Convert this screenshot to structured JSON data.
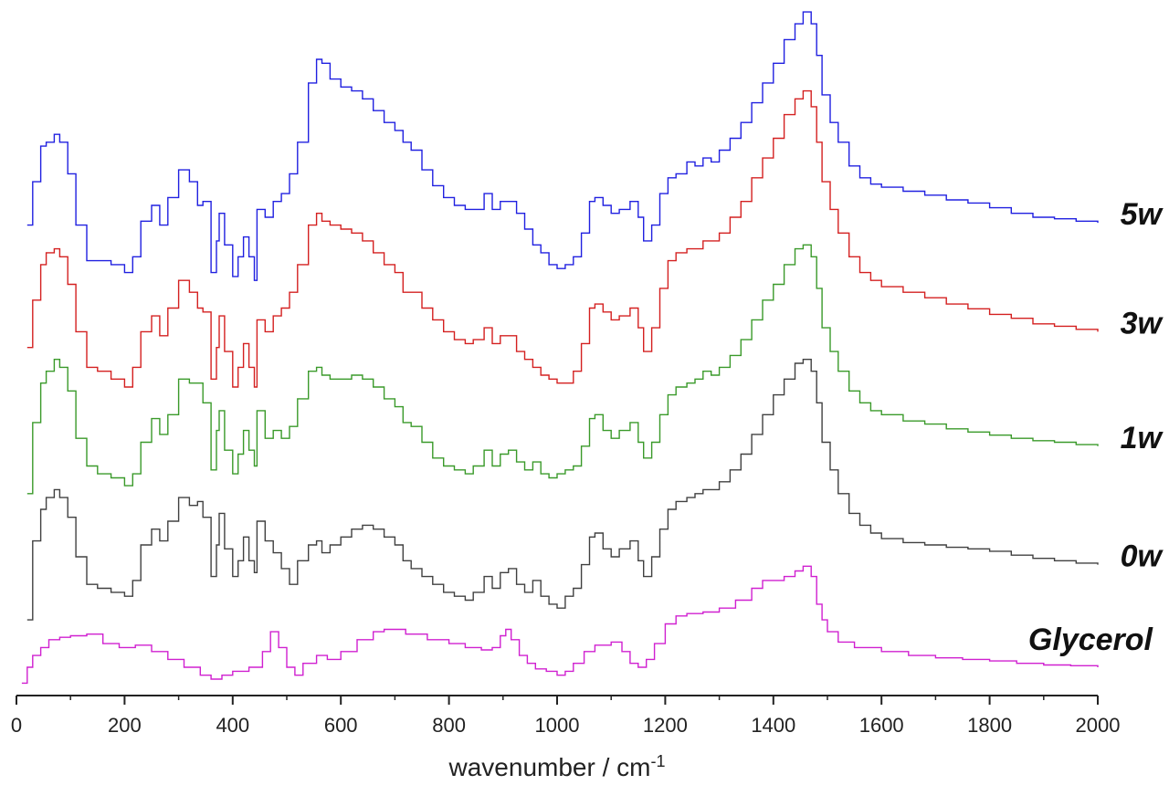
{
  "chart_data": {
    "type": "line",
    "title": "",
    "xlabel": "wavenumber / cm",
    "xlabel_sup": "-1",
    "ylabel": "",
    "xlim": [
      0,
      2000
    ],
    "xticks": [
      0,
      200,
      400,
      600,
      800,
      1000,
      1200,
      1400,
      1600,
      1800,
      2000
    ],
    "grid": false,
    "legend": "inline-right",
    "series": [
      {
        "name": "5w",
        "color": "#2020e0",
        "x": [
          20,
          30,
          45,
          55,
          70,
          80,
          95,
          110,
          130,
          150,
          175,
          200,
          215,
          230,
          250,
          265,
          280,
          300,
          320,
          335,
          345,
          360,
          370,
          375,
          385,
          400,
          410,
          420,
          430,
          440,
          445,
          460,
          475,
          490,
          505,
          520,
          540,
          555,
          565,
          580,
          600,
          620,
          640,
          660,
          680,
          700,
          715,
          730,
          750,
          770,
          790,
          810,
          830,
          845,
          865,
          880,
          895,
          910,
          925,
          940,
          955,
          970,
          985,
          1000,
          1015,
          1030,
          1045,
          1060,
          1070,
          1085,
          1100,
          1115,
          1135,
          1150,
          1160,
          1175,
          1190,
          1205,
          1220,
          1240,
          1255,
          1270,
          1285,
          1300,
          1320,
          1340,
          1360,
          1380,
          1400,
          1420,
          1440,
          1455,
          1470,
          1480,
          1490,
          1505,
          1520,
          1540,
          1560,
          1580,
          1600,
          1640,
          1680,
          1720,
          1760,
          1800,
          1840,
          1880,
          1920,
          1960,
          2000
        ],
        "y": [
          5.9,
          6.45,
          6.9,
          6.95,
          7.05,
          6.95,
          6.55,
          5.9,
          5.45,
          5.45,
          5.4,
          5.3,
          5.5,
          5.95,
          6.15,
          5.9,
          6.25,
          6.6,
          6.45,
          6.15,
          6.2,
          5.3,
          5.7,
          6.05,
          5.65,
          5.25,
          5.5,
          5.75,
          5.5,
          5.2,
          6.1,
          6.0,
          6.2,
          6.3,
          6.55,
          6.95,
          7.7,
          8.0,
          7.95,
          7.75,
          7.65,
          7.6,
          7.5,
          7.35,
          7.2,
          7.1,
          6.95,
          6.85,
          6.6,
          6.4,
          6.25,
          6.15,
          6.1,
          6.1,
          6.3,
          6.1,
          6.2,
          6.2,
          6.05,
          5.85,
          5.65,
          5.55,
          5.4,
          5.35,
          5.4,
          5.5,
          5.8,
          6.2,
          6.25,
          6.15,
          6.05,
          6.1,
          6.2,
          6.0,
          5.7,
          5.9,
          6.3,
          6.5,
          6.55,
          6.7,
          6.65,
          6.75,
          6.7,
          6.85,
          7.0,
          7.2,
          7.45,
          7.7,
          7.95,
          8.25,
          8.45,
          8.6,
          8.45,
          8.05,
          7.55,
          7.2,
          6.95,
          6.65,
          6.5,
          6.42,
          6.38,
          6.33,
          6.28,
          6.22,
          6.18,
          6.12,
          6.05,
          6.0,
          5.98,
          5.95,
          5.93
        ]
      },
      {
        "name": "3w",
        "color": "#d42020",
        "x": [
          20,
          30,
          45,
          55,
          70,
          80,
          95,
          110,
          130,
          150,
          175,
          200,
          215,
          230,
          250,
          265,
          280,
          300,
          320,
          335,
          345,
          360,
          370,
          375,
          385,
          400,
          410,
          420,
          430,
          440,
          445,
          460,
          475,
          490,
          505,
          520,
          540,
          555,
          565,
          580,
          600,
          620,
          640,
          660,
          680,
          700,
          715,
          730,
          750,
          770,
          790,
          810,
          830,
          845,
          865,
          880,
          895,
          910,
          925,
          940,
          955,
          970,
          985,
          1000,
          1015,
          1030,
          1045,
          1060,
          1070,
          1085,
          1100,
          1115,
          1135,
          1150,
          1160,
          1175,
          1190,
          1205,
          1220,
          1240,
          1255,
          1270,
          1285,
          1300,
          1320,
          1340,
          1360,
          1380,
          1400,
          1420,
          1440,
          1455,
          1470,
          1480,
          1490,
          1505,
          1520,
          1540,
          1560,
          1580,
          1600,
          1640,
          1680,
          1720,
          1760,
          1800,
          1840,
          1880,
          1920,
          1960,
          2000
        ],
        "y": [
          4.35,
          4.95,
          5.4,
          5.55,
          5.6,
          5.5,
          5.15,
          4.55,
          4.1,
          4.05,
          3.95,
          3.85,
          4.1,
          4.55,
          4.75,
          4.5,
          4.85,
          5.2,
          5.05,
          4.85,
          4.8,
          3.95,
          4.35,
          4.75,
          4.3,
          3.85,
          4.1,
          4.4,
          4.1,
          3.85,
          4.7,
          4.55,
          4.75,
          4.85,
          5.05,
          5.4,
          5.9,
          6.05,
          5.95,
          5.9,
          5.85,
          5.8,
          5.7,
          5.55,
          5.4,
          5.3,
          5.05,
          5.05,
          4.85,
          4.7,
          4.55,
          4.45,
          4.4,
          4.45,
          4.6,
          4.4,
          4.5,
          4.5,
          4.3,
          4.2,
          4.1,
          4.0,
          3.95,
          3.9,
          3.9,
          4.05,
          4.4,
          4.85,
          4.9,
          4.8,
          4.7,
          4.75,
          4.85,
          4.6,
          4.3,
          4.6,
          5.1,
          5.45,
          5.55,
          5.6,
          5.6,
          5.7,
          5.7,
          5.8,
          6.0,
          6.2,
          6.5,
          6.75,
          7.0,
          7.3,
          7.5,
          7.6,
          7.4,
          6.95,
          6.45,
          6.1,
          5.8,
          5.5,
          5.3,
          5.2,
          5.12,
          5.05,
          4.98,
          4.9,
          4.84,
          4.77,
          4.72,
          4.65,
          4.62,
          4.58,
          4.55
        ]
      },
      {
        "name": "1w",
        "color": "#3a9a2a",
        "x": [
          20,
          30,
          45,
          55,
          70,
          80,
          95,
          110,
          130,
          150,
          175,
          200,
          215,
          230,
          250,
          265,
          280,
          300,
          320,
          335,
          345,
          360,
          370,
          375,
          385,
          400,
          410,
          420,
          430,
          440,
          445,
          460,
          475,
          490,
          505,
          520,
          540,
          555,
          565,
          580,
          600,
          620,
          640,
          660,
          680,
          700,
          715,
          730,
          750,
          770,
          790,
          810,
          830,
          845,
          865,
          880,
          895,
          910,
          925,
          940,
          955,
          970,
          985,
          1000,
          1015,
          1030,
          1045,
          1060,
          1070,
          1085,
          1100,
          1115,
          1135,
          1150,
          1160,
          1175,
          1190,
          1205,
          1220,
          1240,
          1255,
          1270,
          1285,
          1300,
          1320,
          1340,
          1360,
          1380,
          1400,
          1420,
          1440,
          1455,
          1470,
          1480,
          1490,
          1505,
          1520,
          1540,
          1560,
          1580,
          1600,
          1640,
          1680,
          1720,
          1760,
          1800,
          1840,
          1880,
          1920,
          1960,
          2000
        ],
        "y": [
          2.5,
          3.4,
          3.9,
          4.05,
          4.2,
          4.1,
          3.8,
          3.2,
          2.85,
          2.75,
          2.7,
          2.6,
          2.75,
          3.15,
          3.45,
          3.25,
          3.5,
          3.95,
          3.9,
          3.9,
          3.65,
          2.8,
          3.3,
          3.55,
          3.05,
          2.75,
          3.0,
          3.3,
          3.05,
          2.85,
          3.55,
          3.2,
          3.3,
          3.2,
          3.35,
          3.7,
          4.05,
          4.1,
          4.0,
          3.95,
          3.95,
          4.0,
          3.95,
          3.85,
          3.7,
          3.6,
          3.4,
          3.35,
          3.15,
          2.95,
          2.85,
          2.8,
          2.75,
          2.85,
          3.05,
          2.85,
          3.0,
          3.05,
          2.9,
          2.8,
          2.9,
          2.75,
          2.7,
          2.75,
          2.8,
          2.85,
          3.1,
          3.45,
          3.5,
          3.3,
          3.2,
          3.3,
          3.4,
          3.15,
          2.95,
          3.15,
          3.5,
          3.75,
          3.85,
          3.9,
          3.95,
          4.05,
          4.0,
          4.1,
          4.25,
          4.45,
          4.7,
          4.95,
          5.15,
          5.4,
          5.6,
          5.65,
          5.5,
          5.1,
          4.6,
          4.3,
          4.05,
          3.8,
          3.65,
          3.55,
          3.5,
          3.42,
          3.38,
          3.32,
          3.28,
          3.24,
          3.2,
          3.17,
          3.15,
          3.12,
          3.1
        ]
      },
      {
        "name": "0w",
        "color": "#404040",
        "x": [
          20,
          30,
          45,
          55,
          70,
          80,
          95,
          110,
          130,
          150,
          175,
          200,
          215,
          230,
          250,
          265,
          280,
          300,
          320,
          335,
          345,
          360,
          370,
          375,
          385,
          400,
          410,
          420,
          430,
          440,
          445,
          460,
          475,
          490,
          505,
          520,
          540,
          555,
          565,
          580,
          600,
          620,
          640,
          660,
          680,
          700,
          715,
          730,
          750,
          770,
          790,
          810,
          830,
          845,
          865,
          880,
          895,
          910,
          925,
          940,
          955,
          970,
          985,
          1000,
          1015,
          1030,
          1045,
          1060,
          1070,
          1085,
          1100,
          1115,
          1135,
          1150,
          1160,
          1175,
          1190,
          1205,
          1220,
          1240,
          1255,
          1270,
          1285,
          1300,
          1320,
          1340,
          1360,
          1380,
          1400,
          1420,
          1440,
          1455,
          1470,
          1480,
          1490,
          1505,
          1520,
          1540,
          1560,
          1580,
          1600,
          1640,
          1680,
          1720,
          1760,
          1800,
          1840,
          1880,
          1920,
          1960,
          2000
        ],
        "y": [
          0.9,
          1.9,
          2.3,
          2.45,
          2.55,
          2.45,
          2.2,
          1.7,
          1.35,
          1.3,
          1.25,
          1.2,
          1.4,
          1.85,
          2.05,
          1.9,
          2.15,
          2.45,
          2.35,
          2.4,
          2.2,
          1.45,
          1.85,
          2.25,
          1.8,
          1.45,
          1.65,
          1.95,
          1.65,
          1.5,
          2.15,
          1.9,
          1.75,
          1.55,
          1.35,
          1.65,
          1.85,
          1.9,
          1.75,
          1.85,
          1.95,
          2.05,
          2.1,
          2.05,
          1.95,
          1.85,
          1.65,
          1.55,
          1.45,
          1.35,
          1.25,
          1.2,
          1.15,
          1.25,
          1.45,
          1.3,
          1.5,
          1.55,
          1.35,
          1.25,
          1.4,
          1.2,
          1.1,
          1.05,
          1.2,
          1.3,
          1.6,
          1.95,
          2.0,
          1.8,
          1.7,
          1.8,
          1.9,
          1.65,
          1.45,
          1.7,
          2.05,
          2.3,
          2.4,
          2.45,
          2.5,
          2.55,
          2.55,
          2.65,
          2.8,
          3.0,
          3.25,
          3.5,
          3.75,
          3.95,
          4.15,
          4.2,
          4.05,
          3.65,
          3.15,
          2.8,
          2.5,
          2.25,
          2.1,
          2.0,
          1.93,
          1.88,
          1.85,
          1.82,
          1.8,
          1.77,
          1.72,
          1.68,
          1.65,
          1.62,
          1.6
        ]
      },
      {
        "name": "Glycerol",
        "color": "#d020d0",
        "x": [
          10,
          20,
          30,
          45,
          60,
          80,
          100,
          130,
          160,
          190,
          220,
          250,
          280,
          310,
          340,
          360,
          380,
          400,
          430,
          455,
          470,
          485,
          500,
          515,
          530,
          555,
          575,
          600,
          630,
          660,
          680,
          720,
          760,
          800,
          830,
          860,
          880,
          895,
          905,
          915,
          930,
          945,
          960,
          980,
          1000,
          1015,
          1030,
          1050,
          1070,
          1100,
          1120,
          1135,
          1150,
          1165,
          1180,
          1200,
          1220,
          1240,
          1270,
          1300,
          1330,
          1360,
          1380,
          1400,
          1420,
          1440,
          1455,
          1470,
          1480,
          1490,
          1500,
          1520,
          1550,
          1600,
          1650,
          1700,
          1750,
          1800,
          1850,
          1900,
          1950,
          2000
        ],
        "y": [
          0.1,
          0.3,
          0.45,
          0.55,
          0.65,
          0.68,
          0.7,
          0.72,
          0.6,
          0.55,
          0.58,
          0.5,
          0.4,
          0.3,
          0.2,
          0.15,
          0.2,
          0.25,
          0.3,
          0.5,
          0.75,
          0.55,
          0.3,
          0.2,
          0.35,
          0.45,
          0.4,
          0.5,
          0.65,
          0.75,
          0.78,
          0.72,
          0.65,
          0.6,
          0.55,
          0.52,
          0.55,
          0.7,
          0.78,
          0.65,
          0.45,
          0.35,
          0.28,
          0.25,
          0.2,
          0.25,
          0.35,
          0.5,
          0.58,
          0.62,
          0.5,
          0.35,
          0.3,
          0.4,
          0.6,
          0.85,
          0.95,
          0.98,
          1.0,
          1.05,
          1.15,
          1.3,
          1.4,
          1.4,
          1.45,
          1.52,
          1.58,
          1.45,
          1.1,
          0.9,
          0.75,
          0.62,
          0.55,
          0.5,
          0.45,
          0.42,
          0.4,
          0.38,
          0.35,
          0.33,
          0.32,
          0.3
        ]
      }
    ]
  }
}
